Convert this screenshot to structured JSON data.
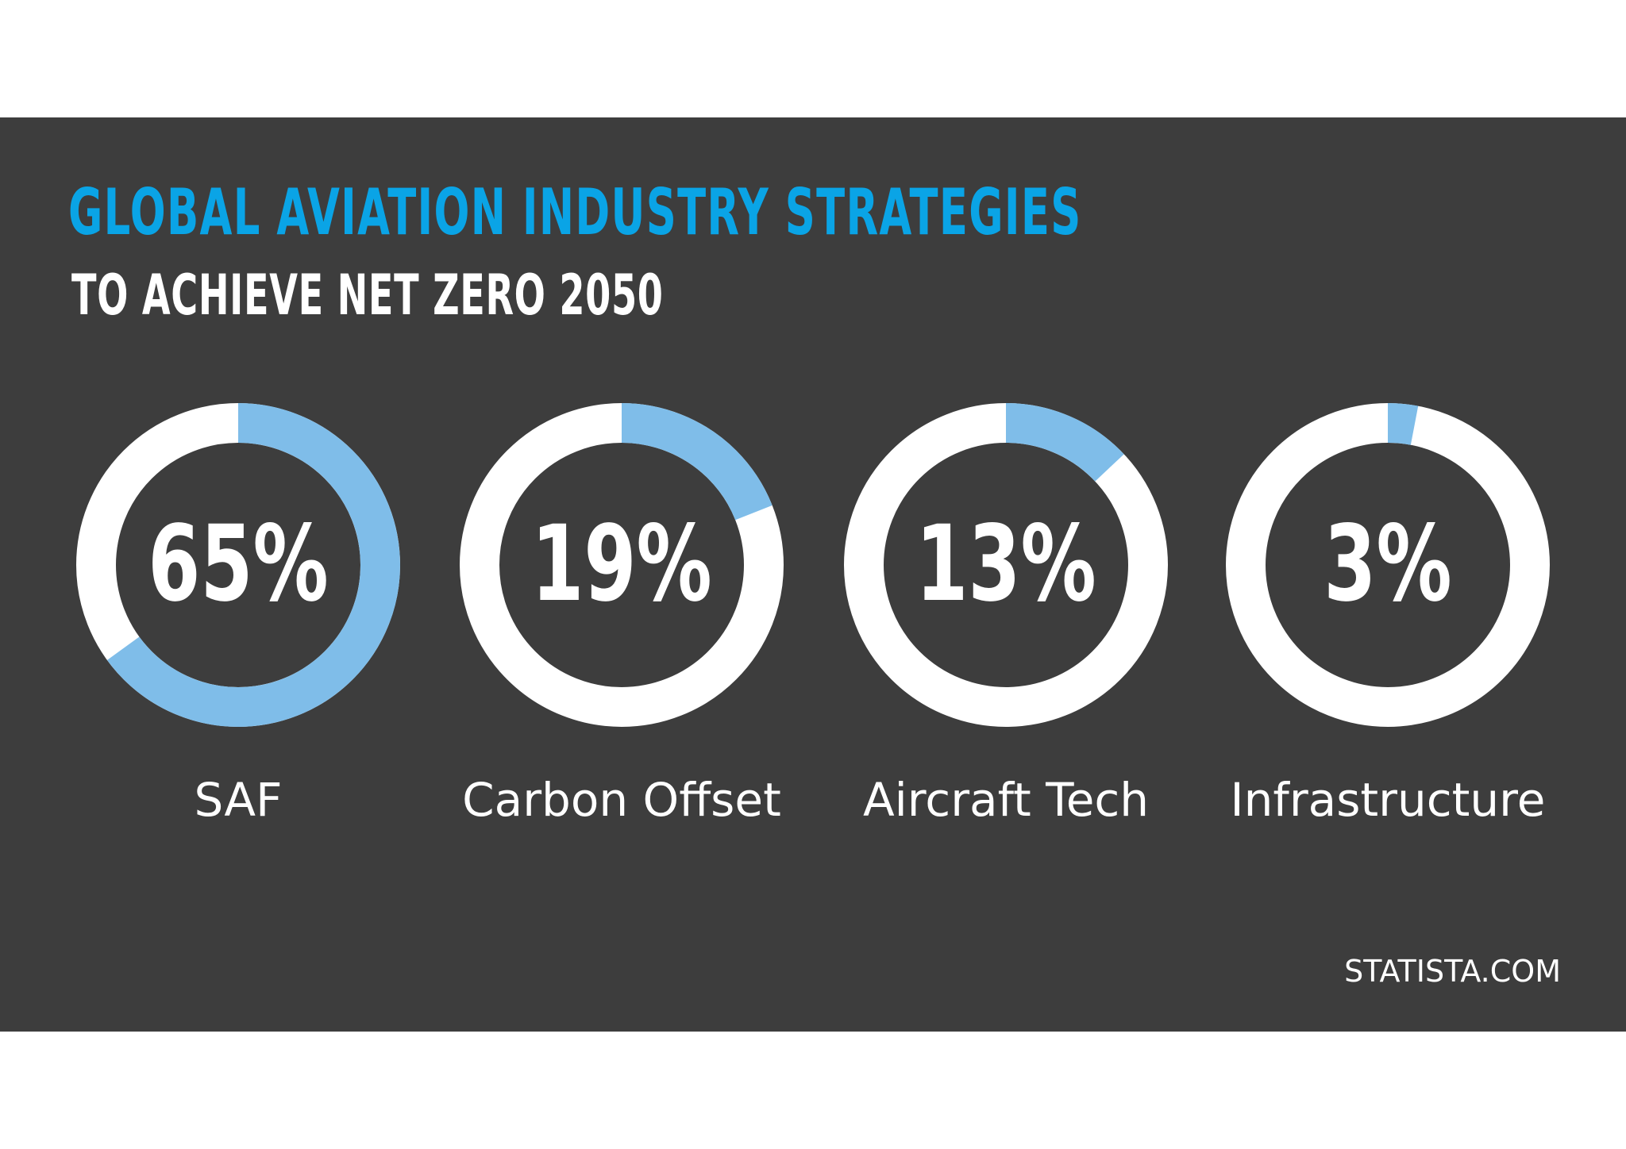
{
  "colors": {
    "background": "#3d3d3d",
    "title": "#0aa4e6",
    "subtitle": "#ffffff",
    "ring_track": "#ffffff",
    "ring_fill": "#7fbde9",
    "text": "#ffffff"
  },
  "chart_data": {
    "type": "pie",
    "title": "GLOBAL AVIATION INDUSTRY STRATEGIES",
    "subtitle": "TO ACHIEVE NET ZERO 2050",
    "categories": [
      "SAF",
      "Carbon Offset",
      "Aircraft Tech",
      "Infrastructure"
    ],
    "values": [
      65,
      19,
      13,
      3
    ],
    "data_labels": [
      "65%",
      "19%",
      "13%",
      "3%"
    ],
    "unit": "%",
    "legend": "none"
  },
  "footer": {
    "source": "STATISTA.COM"
  }
}
